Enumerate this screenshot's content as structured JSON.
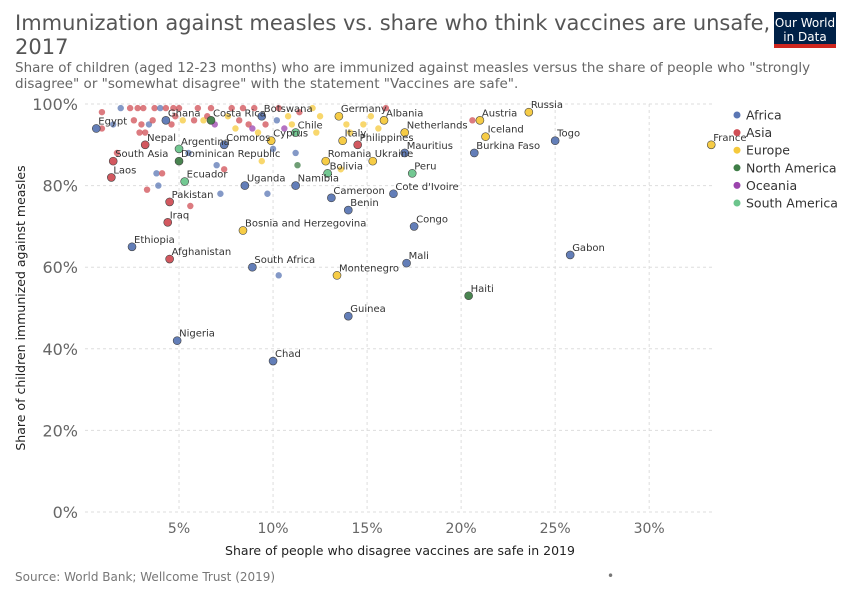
{
  "header": {
    "title": "Immunization against measles vs. share who think vaccines are unsafe, 2017",
    "subtitle": "Share of children (aged 12-23 months) who are immunized against measles versus the share of people who \"strongly disagree\" or \"somewhat disagree\" with the statement \"Vaccines are safe\".",
    "logo_line1": "Our World",
    "logo_line2": "in Data"
  },
  "footer": {
    "source": "Source: World Bank; Wellcome Trust (2019)",
    "dot": "•"
  },
  "colors": {
    "Africa": "#5b77b4",
    "Asia": "#d04f56",
    "Europe": "#f5c93c",
    "North America": "#3f7d47",
    "Oceania": "#9b44ad",
    "South America": "#6cc58c"
  },
  "chart_data": {
    "type": "scatter",
    "title": "Immunization against measles vs. share who think vaccines are unsafe, 2017",
    "xlabel": "Share of people who disagree vaccines are safe in 2019",
    "ylabel": "Share of children immunized against measles",
    "xlim": [
      0,
      33.5
    ],
    "ylim": [
      0,
      100
    ],
    "x_ticks": [
      "5%",
      "10%",
      "15%",
      "20%",
      "25%",
      "30%"
    ],
    "x_tick_values": [
      5,
      10,
      15,
      20,
      25,
      30
    ],
    "y_ticks": [
      "0%",
      "20%",
      "40%",
      "60%",
      "80%",
      "100%"
    ],
    "y_tick_values": [
      0,
      20,
      40,
      60,
      80,
      100
    ],
    "legend": {
      "position": "right",
      "items": [
        "Africa",
        "Asia",
        "Europe",
        "North America",
        "Oceania",
        "South America"
      ]
    },
    "points": [
      {
        "label": "Egypt",
        "x": 0.6,
        "y": 94,
        "region": "Africa"
      },
      {
        "label": "Ghana",
        "x": 4.3,
        "y": 96,
        "region": "Africa"
      },
      {
        "label": "Costa Rica",
        "x": 6.7,
        "y": 96,
        "region": "North America"
      },
      {
        "label": "Botswana",
        "x": 9.4,
        "y": 97,
        "region": "Africa"
      },
      {
        "label": "Germany",
        "x": 13.5,
        "y": 97,
        "region": "Europe"
      },
      {
        "label": "Albania",
        "x": 15.9,
        "y": 96,
        "region": "Europe"
      },
      {
        "label": "Austria",
        "x": 21.0,
        "y": 96,
        "region": "Europe"
      },
      {
        "label": "Russia",
        "x": 23.6,
        "y": 98,
        "region": "Europe"
      },
      {
        "label": "Iceland",
        "x": 21.3,
        "y": 92,
        "region": "Europe"
      },
      {
        "label": "Netherlands",
        "x": 17.0,
        "y": 93,
        "region": "Europe"
      },
      {
        "label": "Italy",
        "x": 13.7,
        "y": 91,
        "region": "Europe"
      },
      {
        "label": "Chile",
        "x": 11.2,
        "y": 93,
        "region": "South America"
      },
      {
        "label": "Argentina",
        "x": 5.0,
        "y": 89,
        "region": "South America"
      },
      {
        "label": "Comoros",
        "x": 7.4,
        "y": 90,
        "region": "Africa"
      },
      {
        "label": "Cyprus",
        "x": 9.9,
        "y": 91,
        "region": "Europe"
      },
      {
        "label": "Philippines",
        "x": 14.5,
        "y": 90,
        "region": "Asia"
      },
      {
        "label": "Mauritius",
        "x": 17.0,
        "y": 88,
        "region": "Africa"
      },
      {
        "label": "Togo",
        "x": 25.0,
        "y": 91,
        "region": "Africa"
      },
      {
        "label": "France",
        "x": 33.3,
        "y": 90,
        "region": "Europe"
      },
      {
        "label": "Burkina Faso",
        "x": 20.7,
        "y": 88,
        "region": "Africa"
      },
      {
        "label": "Nepal",
        "x": 3.2,
        "y": 90,
        "region": "Asia"
      },
      {
        "label": "South Asia",
        "x": 1.5,
        "y": 86,
        "region": "Asia"
      },
      {
        "label": "Dominican Republic",
        "x": 5.0,
        "y": 86,
        "region": "North America"
      },
      {
        "label": "Romania",
        "x": 12.8,
        "y": 86,
        "region": "Europe"
      },
      {
        "label": "Ukraine",
        "x": 15.3,
        "y": 86,
        "region": "Europe"
      },
      {
        "label": "Bolivia",
        "x": 12.9,
        "y": 83,
        "region": "South America"
      },
      {
        "label": "Peru",
        "x": 17.4,
        "y": 83,
        "region": "South America"
      },
      {
        "label": "Laos",
        "x": 1.4,
        "y": 82,
        "region": "Asia"
      },
      {
        "label": "Ecuador",
        "x": 5.3,
        "y": 81,
        "region": "South America"
      },
      {
        "label": "Uganda",
        "x": 8.5,
        "y": 80,
        "region": "Africa"
      },
      {
        "label": "Namibia",
        "x": 11.2,
        "y": 80,
        "region": "Africa"
      },
      {
        "label": "Cameroon",
        "x": 13.1,
        "y": 77,
        "region": "Africa"
      },
      {
        "label": "Cote d'Ivoire",
        "x": 16.4,
        "y": 78,
        "region": "Africa"
      },
      {
        "label": "Pakistan",
        "x": 4.5,
        "y": 76,
        "region": "Asia"
      },
      {
        "label": "Benin",
        "x": 14.0,
        "y": 74,
        "region": "Africa"
      },
      {
        "label": "Iraq",
        "x": 4.4,
        "y": 71,
        "region": "Asia"
      },
      {
        "label": "Bosnia and Herzegovina",
        "x": 8.4,
        "y": 69,
        "region": "Europe"
      },
      {
        "label": "Congo",
        "x": 17.5,
        "y": 70,
        "region": "Africa"
      },
      {
        "label": "Ethiopia",
        "x": 2.5,
        "y": 65,
        "region": "Africa"
      },
      {
        "label": "Afghanistan",
        "x": 4.5,
        "y": 62,
        "region": "Asia"
      },
      {
        "label": "Gabon",
        "x": 25.8,
        "y": 63,
        "region": "Africa"
      },
      {
        "label": "South Africa",
        "x": 8.9,
        "y": 60,
        "region": "Africa"
      },
      {
        "label": "Mali",
        "x": 17.1,
        "y": 61,
        "region": "Africa"
      },
      {
        "label": "Montenegro",
        "x": 13.4,
        "y": 58,
        "region": "Europe"
      },
      {
        "label": "Haiti",
        "x": 20.4,
        "y": 53,
        "region": "North America"
      },
      {
        "label": "Guinea",
        "x": 14.0,
        "y": 48,
        "region": "Africa"
      },
      {
        "label": "Nigeria",
        "x": 4.9,
        "y": 42,
        "region": "Africa"
      },
      {
        "label": "Chad",
        "x": 10.0,
        "y": 37,
        "region": "Africa"
      },
      {
        "label": "",
        "x": 0.9,
        "y": 94,
        "region": "Asia"
      },
      {
        "label": "",
        "x": 0.9,
        "y": 98,
        "region": "Asia"
      },
      {
        "label": "",
        "x": 1.5,
        "y": 95,
        "region": "Africa"
      },
      {
        "label": "",
        "x": 1.7,
        "y": 88,
        "region": "Asia"
      },
      {
        "label": "",
        "x": 1.9,
        "y": 99,
        "region": "Africa"
      },
      {
        "label": "",
        "x": 2.4,
        "y": 99,
        "region": "Asia"
      },
      {
        "label": "",
        "x": 2.6,
        "y": 96,
        "region": "Asia"
      },
      {
        "label": "",
        "x": 2.8,
        "y": 99,
        "region": "Asia"
      },
      {
        "label": "",
        "x": 2.9,
        "y": 93,
        "region": "Asia"
      },
      {
        "label": "",
        "x": 3.0,
        "y": 95,
        "region": "Asia"
      },
      {
        "label": "",
        "x": 3.1,
        "y": 99,
        "region": "Asia"
      },
      {
        "label": "",
        "x": 3.2,
        "y": 93,
        "region": "Asia"
      },
      {
        "label": "",
        "x": 3.4,
        "y": 95,
        "region": "Africa"
      },
      {
        "label": "",
        "x": 3.3,
        "y": 79,
        "region": "Asia"
      },
      {
        "label": "",
        "x": 3.6,
        "y": 96,
        "region": "Asia"
      },
      {
        "label": "",
        "x": 3.7,
        "y": 99,
        "region": "Asia"
      },
      {
        "label": "",
        "x": 3.8,
        "y": 83,
        "region": "Africa"
      },
      {
        "label": "",
        "x": 3.9,
        "y": 80,
        "region": "Africa"
      },
      {
        "label": "",
        "x": 4.0,
        "y": 99,
        "region": "Africa"
      },
      {
        "label": "",
        "x": 4.1,
        "y": 83,
        "region": "Asia"
      },
      {
        "label": "",
        "x": 4.3,
        "y": 99,
        "region": "Asia"
      },
      {
        "label": "",
        "x": 4.6,
        "y": 95,
        "region": "Asia"
      },
      {
        "label": "",
        "x": 4.7,
        "y": 99,
        "region": "Asia"
      },
      {
        "label": "",
        "x": 4.8,
        "y": 97,
        "region": "Asia"
      },
      {
        "label": "",
        "x": 5.0,
        "y": 99,
        "region": "Asia"
      },
      {
        "label": "",
        "x": 5.2,
        "y": 96,
        "region": "Europe"
      },
      {
        "label": "",
        "x": 5.5,
        "y": 88,
        "region": "Africa"
      },
      {
        "label": "",
        "x": 5.6,
        "y": 75,
        "region": "Asia"
      },
      {
        "label": "",
        "x": 5.8,
        "y": 96,
        "region": "Asia"
      },
      {
        "label": "",
        "x": 6.0,
        "y": 99,
        "region": "Asia"
      },
      {
        "label": "",
        "x": 6.3,
        "y": 96,
        "region": "Europe"
      },
      {
        "label": "",
        "x": 6.5,
        "y": 97,
        "region": "Asia"
      },
      {
        "label": "",
        "x": 6.7,
        "y": 99,
        "region": "Asia"
      },
      {
        "label": "",
        "x": 6.9,
        "y": 95,
        "region": "Oceania"
      },
      {
        "label": "",
        "x": 7.0,
        "y": 85,
        "region": "Africa"
      },
      {
        "label": "",
        "x": 7.2,
        "y": 78,
        "region": "Africa"
      },
      {
        "label": "",
        "x": 7.4,
        "y": 84,
        "region": "Asia"
      },
      {
        "label": "",
        "x": 7.6,
        "y": 97,
        "region": "Europe"
      },
      {
        "label": "",
        "x": 7.8,
        "y": 99,
        "region": "Asia"
      },
      {
        "label": "",
        "x": 8.0,
        "y": 94,
        "region": "Europe"
      },
      {
        "label": "",
        "x": 8.2,
        "y": 96,
        "region": "Asia"
      },
      {
        "label": "",
        "x": 8.4,
        "y": 99,
        "region": "Asia"
      },
      {
        "label": "",
        "x": 8.7,
        "y": 95,
        "region": "Asia"
      },
      {
        "label": "",
        "x": 8.9,
        "y": 94,
        "region": "Oceania"
      },
      {
        "label": "",
        "x": 9.0,
        "y": 99,
        "region": "Asia"
      },
      {
        "label": "",
        "x": 9.2,
        "y": 93,
        "region": "Europe"
      },
      {
        "label": "",
        "x": 9.4,
        "y": 86,
        "region": "Europe"
      },
      {
        "label": "",
        "x": 9.6,
        "y": 95,
        "region": "Asia"
      },
      {
        "label": "",
        "x": 9.7,
        "y": 78,
        "region": "Africa"
      },
      {
        "label": "",
        "x": 10.0,
        "y": 89,
        "region": "Africa"
      },
      {
        "label": "",
        "x": 10.2,
        "y": 96,
        "region": "Africa"
      },
      {
        "label": "",
        "x": 10.3,
        "y": 99,
        "region": "Asia"
      },
      {
        "label": "",
        "x": 10.3,
        "y": 58,
        "region": "Africa"
      },
      {
        "label": "",
        "x": 10.6,
        "y": 94,
        "region": "Oceania"
      },
      {
        "label": "",
        "x": 10.8,
        "y": 97,
        "region": "Europe"
      },
      {
        "label": "",
        "x": 11.0,
        "y": 95,
        "region": "Europe"
      },
      {
        "label": "",
        "x": 11.2,
        "y": 88,
        "region": "Africa"
      },
      {
        "label": "",
        "x": 11.3,
        "y": 85,
        "region": "North America"
      },
      {
        "label": "",
        "x": 11.4,
        "y": 98,
        "region": "Asia"
      },
      {
        "label": "",
        "x": 12.1,
        "y": 99,
        "region": "Europe"
      },
      {
        "label": "",
        "x": 12.3,
        "y": 93,
        "region": "Europe"
      },
      {
        "label": "",
        "x": 12.5,
        "y": 97,
        "region": "Europe"
      },
      {
        "label": "",
        "x": 13.6,
        "y": 84,
        "region": "Europe"
      },
      {
        "label": "",
        "x": 13.9,
        "y": 95,
        "region": "Europe"
      },
      {
        "label": "",
        "x": 14.1,
        "y": 93,
        "region": "Europe"
      },
      {
        "label": "",
        "x": 14.8,
        "y": 95,
        "region": "Europe"
      },
      {
        "label": "",
        "x": 15.2,
        "y": 97,
        "region": "Europe"
      },
      {
        "label": "",
        "x": 15.6,
        "y": 94,
        "region": "Europe"
      },
      {
        "label": "",
        "x": 16.0,
        "y": 99,
        "region": "Asia"
      },
      {
        "label": "",
        "x": 20.6,
        "y": 96,
        "region": "Asia"
      }
    ],
    "labeled_points_note": "",
    "grid": true
  }
}
